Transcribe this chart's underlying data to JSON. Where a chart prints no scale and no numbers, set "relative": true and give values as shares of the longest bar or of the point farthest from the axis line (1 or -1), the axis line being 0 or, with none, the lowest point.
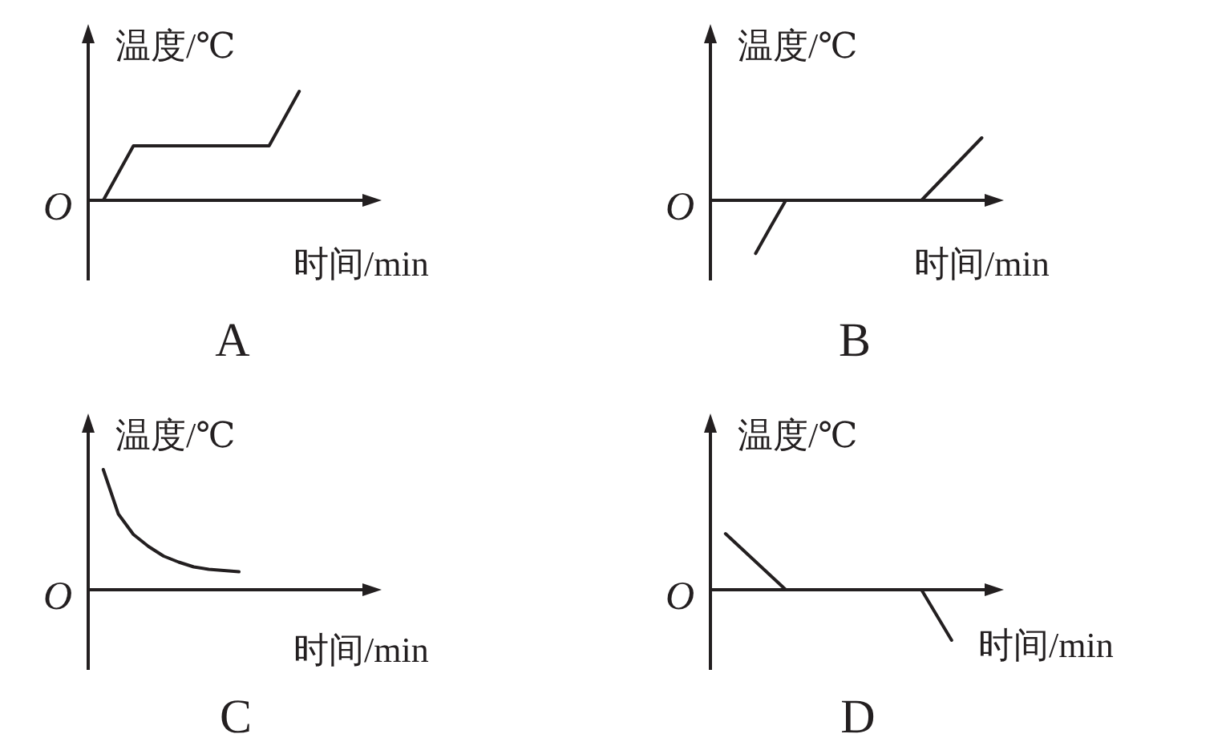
{
  "chart_data": [
    {
      "type": "line",
      "title": "A",
      "xlabel": "时间/min",
      "ylabel": "温度/℃",
      "annotations": [
        "O"
      ],
      "relative": true,
      "color": "#231f20",
      "categories": [
        null,
        null,
        null,
        null,
        null,
        null,
        null,
        null,
        null,
        null,
        null,
        null,
        null,
        null,
        null,
        null,
        null,
        null,
        null,
        null
      ],
      "values": [
        null,
        0,
        0.25,
        0.5,
        0.5,
        0.5,
        0.5,
        0.5,
        0.5,
        0.5,
        0.5,
        0.5,
        0.5,
        0.75,
        1,
        null,
        null,
        null,
        null,
        null
      ]
    },
    {
      "type": "line",
      "title": "B",
      "xlabel": "时间/min",
      "ylabel": "温度/℃",
      "annotations": [
        "O"
      ],
      "relative": true,
      "color": "#231f20",
      "categories": [
        null,
        null,
        null,
        null,
        null,
        null,
        null,
        null,
        null,
        null,
        null,
        null,
        null,
        null,
        null,
        null,
        null,
        null,
        null,
        null
      ],
      "values": [
        null,
        null,
        null,
        -0.85,
        -0.42,
        0,
        0,
        0,
        0,
        0,
        0,
        0,
        0,
        0,
        0,
        0.25,
        0.5,
        0.75,
        1,
        null
      ]
    },
    {
      "type": "line",
      "title": "C",
      "xlabel": "时间/min",
      "ylabel": "温度/℃",
      "annotations": [
        "O"
      ],
      "relative": true,
      "color": "#231f20",
      "categories": [
        null,
        null,
        null,
        null,
        null,
        null,
        null,
        null,
        null,
        null,
        null,
        null,
        null,
        null,
        null,
        null,
        null,
        null,
        null,
        null
      ],
      "values": [
        null,
        1,
        0.63,
        0.46,
        0.36,
        0.28,
        0.23,
        0.19,
        0.17,
        0.16,
        0.15,
        null,
        null,
        null,
        null,
        null,
        null,
        null,
        null,
        null
      ]
    },
    {
      "type": "line",
      "title": "D",
      "xlabel": "时间/min",
      "ylabel": "温度/℃",
      "annotations": [
        "O"
      ],
      "relative": true,
      "color": "#231f20",
      "categories": [
        null,
        null,
        null,
        null,
        null,
        null,
        null,
        null,
        null,
        null,
        null,
        null,
        null,
        null,
        null,
        null,
        null,
        null,
        null,
        null
      ],
      "values": [
        null,
        1,
        0.75,
        0.5,
        0.25,
        0,
        0,
        0,
        0,
        0,
        0,
        0,
        0,
        0,
        0,
        -0.45,
        -0.9,
        null,
        null,
        null
      ]
    }
  ]
}
